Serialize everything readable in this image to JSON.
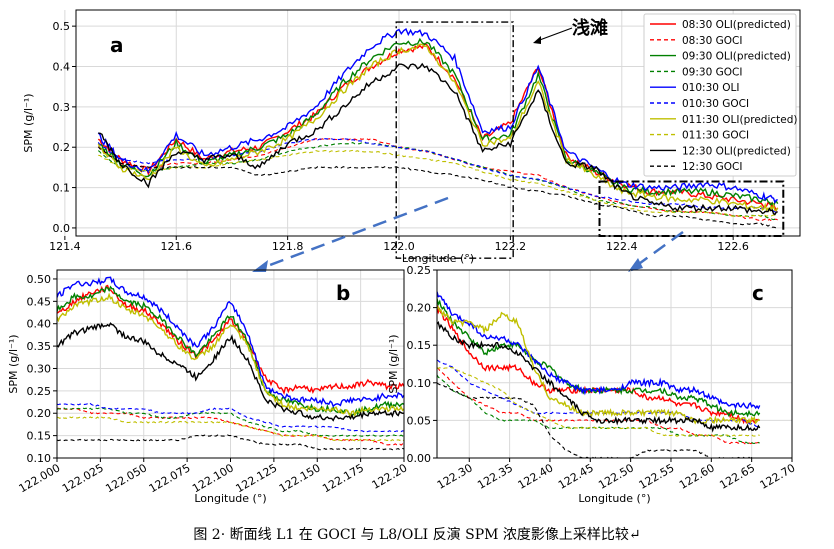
{
  "caption": "图 2· 断面线 L1 在 GOCI 与 L8/OLI 反演 SPM 浓度影像上采样比较↵",
  "legend": [
    {
      "label": "08:30 OLI(predicted)",
      "color": "#ff0000",
      "dash": false
    },
    {
      "label": "08:30 GOCI",
      "color": "#ff0000",
      "dash": true
    },
    {
      "label": "09:30 OLI(predicted)",
      "color": "#008000",
      "dash": false
    },
    {
      "label": "09:30 GOCI",
      "color": "#008000",
      "dash": true
    },
    {
      "label": "010:30 OLI",
      "color": "#0000ff",
      "dash": false
    },
    {
      "label": "010:30 GOCI",
      "color": "#0000ff",
      "dash": true
    },
    {
      "label": "011:30 OLI(predicted)",
      "color": "#bfbf00",
      "dash": false
    },
    {
      "label": "011:30 GOCI",
      "color": "#bfbf00",
      "dash": true
    },
    {
      "label": "12:30 OLI(predicted)",
      "color": "#000000",
      "dash": false
    },
    {
      "label": "12:30 GOCI",
      "color": "#000000",
      "dash": true
    }
  ],
  "chart_data": [
    {
      "panel_label": "a",
      "type": "line",
      "xlabel": "Longitude (°)",
      "ylabel": "SPM (g/l⁻¹)",
      "xlim": [
        121.42,
        122.72
      ],
      "ylim": [
        -0.02,
        0.54
      ],
      "xticks": [
        "121.4",
        "121.6",
        "121.8",
        "122.0",
        "122.2",
        "122.4",
        "122.6"
      ],
      "yticks": [
        "0.0",
        "0.1",
        "0.2",
        "0.3",
        "0.4",
        "0.5"
      ],
      "annotation": "浅滩",
      "x": [
        121.46,
        121.5,
        121.55,
        121.6,
        121.65,
        121.7,
        121.75,
        121.8,
        121.85,
        121.9,
        121.95,
        122.0,
        122.05,
        122.1,
        122.15,
        122.2,
        122.25,
        122.3,
        122.35,
        122.4,
        122.45,
        122.5,
        122.55,
        122.6,
        122.65,
        122.68
      ],
      "series": [
        {
          "name": "08:30 OLI(predicted)",
          "values": [
            0.22,
            0.17,
            0.14,
            0.22,
            0.17,
            0.19,
            0.2,
            0.24,
            0.28,
            0.35,
            0.4,
            0.44,
            0.45,
            0.37,
            0.22,
            0.26,
            0.4,
            0.18,
            0.14,
            0.11,
            0.09,
            0.09,
            0.08,
            0.07,
            0.06,
            0.05
          ]
        },
        {
          "name": "08:30 GOCI",
          "values": [
            0.2,
            0.16,
            0.15,
            0.16,
            0.16,
            0.17,
            0.18,
            0.2,
            0.22,
            0.22,
            0.22,
            0.2,
            0.19,
            0.17,
            0.15,
            0.14,
            0.13,
            0.1,
            0.08,
            0.06,
            0.05,
            0.04,
            0.04,
            0.03,
            0.02,
            0.02
          ]
        },
        {
          "name": "09:30 OLI(predicted)",
          "values": [
            0.21,
            0.16,
            0.13,
            0.21,
            0.16,
            0.18,
            0.2,
            0.23,
            0.28,
            0.36,
            0.42,
            0.46,
            0.46,
            0.38,
            0.22,
            0.23,
            0.38,
            0.17,
            0.14,
            0.1,
            0.09,
            0.09,
            0.09,
            0.08,
            0.07,
            0.06
          ]
        },
        {
          "name": "09:30 GOCI",
          "values": [
            0.19,
            0.15,
            0.14,
            0.15,
            0.16,
            0.16,
            0.17,
            0.19,
            0.2,
            0.21,
            0.21,
            0.2,
            0.19,
            0.17,
            0.15,
            0.13,
            0.12,
            0.1,
            0.07,
            0.06,
            0.05,
            0.04,
            0.04,
            0.03,
            0.03,
            0.02
          ]
        },
        {
          "name": "010:30 OLI",
          "values": [
            0.23,
            0.17,
            0.14,
            0.23,
            0.18,
            0.2,
            0.22,
            0.25,
            0.3,
            0.38,
            0.45,
            0.49,
            0.48,
            0.42,
            0.24,
            0.25,
            0.4,
            0.19,
            0.15,
            0.11,
            0.1,
            0.1,
            0.11,
            0.1,
            0.08,
            0.07
          ]
        },
        {
          "name": "010:30 GOCI",
          "values": [
            0.21,
            0.17,
            0.16,
            0.17,
            0.17,
            0.18,
            0.19,
            0.21,
            0.22,
            0.22,
            0.21,
            0.2,
            0.19,
            0.17,
            0.15,
            0.13,
            0.12,
            0.1,
            0.08,
            0.07,
            0.06,
            0.06,
            0.05,
            0.05,
            0.05,
            0.04
          ]
        },
        {
          "name": "011:30 OLI(predicted)",
          "values": [
            0.2,
            0.15,
            0.12,
            0.2,
            0.15,
            0.17,
            0.19,
            0.22,
            0.27,
            0.34,
            0.4,
            0.44,
            0.45,
            0.36,
            0.21,
            0.22,
            0.36,
            0.17,
            0.13,
            0.09,
            0.08,
            0.07,
            0.07,
            0.06,
            0.05,
            0.05
          ]
        },
        {
          "name": "011:30 GOCI",
          "values": [
            0.18,
            0.15,
            0.14,
            0.15,
            0.15,
            0.16,
            0.17,
            0.18,
            0.19,
            0.19,
            0.19,
            0.18,
            0.17,
            0.16,
            0.14,
            0.12,
            0.11,
            0.09,
            0.07,
            0.05,
            0.04,
            0.04,
            0.04,
            0.03,
            0.03,
            0.03
          ]
        },
        {
          "name": "12:30 OLI(predicted)",
          "values": [
            0.24,
            0.16,
            0.11,
            0.19,
            0.17,
            0.18,
            0.15,
            0.21,
            0.24,
            0.3,
            0.36,
            0.4,
            0.4,
            0.34,
            0.19,
            0.21,
            0.34,
            0.16,
            0.15,
            0.09,
            0.06,
            0.05,
            0.05,
            0.05,
            0.04,
            0.04
          ]
        },
        {
          "name": "12:30 GOCI",
          "values": [
            0.2,
            0.16,
            0.15,
            0.15,
            0.15,
            0.15,
            0.13,
            0.14,
            0.15,
            0.15,
            0.15,
            0.15,
            0.14,
            0.13,
            0.12,
            0.1,
            0.09,
            0.08,
            0.06,
            0.05,
            0.03,
            0.03,
            0.02,
            0.01,
            0.01,
            0.0
          ]
        }
      ]
    },
    {
      "panel_label": "b",
      "type": "line",
      "xlabel": "Longitude (°)",
      "ylabel": "SPM (g/l⁻¹)",
      "xlim": [
        122.0,
        122.2
      ],
      "ylim": [
        0.1,
        0.52
      ],
      "xticks": [
        "122.000",
        "122.025",
        "122.050",
        "122.075",
        "122.100",
        "122.125",
        "122.150",
        "122.175",
        "122.20"
      ],
      "yticks": [
        "0.10",
        "0.15",
        "0.20",
        "0.25",
        "0.30",
        "0.35",
        "0.40",
        "0.45",
        "0.50"
      ],
      "x": [
        122.0,
        122.01,
        122.02,
        122.03,
        122.04,
        122.05,
        122.06,
        122.07,
        122.08,
        122.09,
        122.1,
        122.11,
        122.12,
        122.13,
        122.14,
        122.15,
        122.16,
        122.17,
        122.18,
        122.19,
        122.2
      ],
      "series": [
        {
          "name": "08:30 OLI(predicted)",
          "values": [
            0.42,
            0.45,
            0.47,
            0.48,
            0.44,
            0.43,
            0.4,
            0.36,
            0.33,
            0.36,
            0.41,
            0.36,
            0.28,
            0.25,
            0.26,
            0.25,
            0.26,
            0.26,
            0.27,
            0.26,
            0.26
          ]
        },
        {
          "name": "08:30 GOCI",
          "values": [
            0.21,
            0.21,
            0.2,
            0.2,
            0.2,
            0.19,
            0.19,
            0.19,
            0.19,
            0.19,
            0.18,
            0.17,
            0.16,
            0.15,
            0.15,
            0.15,
            0.14,
            0.14,
            0.14,
            0.13,
            0.13
          ]
        },
        {
          "name": "09:30 OLI(predicted)",
          "values": [
            0.43,
            0.46,
            0.46,
            0.48,
            0.45,
            0.44,
            0.41,
            0.37,
            0.33,
            0.37,
            0.42,
            0.36,
            0.25,
            0.23,
            0.22,
            0.21,
            0.21,
            0.2,
            0.21,
            0.22,
            0.22
          ]
        },
        {
          "name": "09:30 GOCI",
          "values": [
            0.21,
            0.21,
            0.21,
            0.21,
            0.2,
            0.2,
            0.19,
            0.19,
            0.2,
            0.2,
            0.2,
            0.18,
            0.17,
            0.16,
            0.16,
            0.15,
            0.15,
            0.15,
            0.15,
            0.15,
            0.15
          ]
        },
        {
          "name": "010:30 OLI",
          "values": [
            0.46,
            0.49,
            0.49,
            0.5,
            0.47,
            0.46,
            0.43,
            0.39,
            0.35,
            0.39,
            0.45,
            0.38,
            0.26,
            0.24,
            0.23,
            0.23,
            0.22,
            0.23,
            0.23,
            0.24,
            0.24
          ]
        },
        {
          "name": "010:30 GOCI",
          "values": [
            0.22,
            0.22,
            0.22,
            0.21,
            0.21,
            0.21,
            0.2,
            0.2,
            0.2,
            0.21,
            0.21,
            0.19,
            0.18,
            0.17,
            0.17,
            0.17,
            0.17,
            0.16,
            0.16,
            0.16,
            0.16
          ]
        },
        {
          "name": "011:30 OLI(predicted)",
          "values": [
            0.41,
            0.44,
            0.45,
            0.46,
            0.43,
            0.42,
            0.39,
            0.35,
            0.32,
            0.35,
            0.4,
            0.35,
            0.25,
            0.22,
            0.21,
            0.21,
            0.21,
            0.2,
            0.21,
            0.21,
            0.21
          ]
        },
        {
          "name": "011:30 GOCI",
          "values": [
            0.19,
            0.19,
            0.19,
            0.19,
            0.18,
            0.18,
            0.18,
            0.18,
            0.18,
            0.18,
            0.18,
            0.17,
            0.16,
            0.15,
            0.15,
            0.15,
            0.14,
            0.14,
            0.14,
            0.14,
            0.14
          ]
        },
        {
          "name": "12:30 OLI(predicted)",
          "values": [
            0.35,
            0.38,
            0.39,
            0.4,
            0.37,
            0.36,
            0.33,
            0.31,
            0.28,
            0.32,
            0.37,
            0.32,
            0.23,
            0.21,
            0.2,
            0.19,
            0.19,
            0.19,
            0.2,
            0.2,
            0.2
          ]
        },
        {
          "name": "12:30 GOCI",
          "values": [
            0.14,
            0.14,
            0.14,
            0.14,
            0.14,
            0.14,
            0.14,
            0.14,
            0.15,
            0.15,
            0.15,
            0.14,
            0.13,
            0.13,
            0.13,
            0.12,
            0.12,
            0.12,
            0.12,
            0.12,
            0.12
          ]
        }
      ]
    },
    {
      "panel_label": "c",
      "type": "line",
      "xlabel": "Longitude (°)",
      "ylabel": "SPM (g/l⁻¹)",
      "xlim": [
        122.26,
        122.7
      ],
      "ylim": [
        0.0,
        0.25
      ],
      "xticks": [
        "122.30",
        "122.35",
        "122.40",
        "122.45",
        "122.50",
        "122.55",
        "122.60",
        "122.65",
        "122.70"
      ],
      "yticks": [
        "0.00",
        "0.05",
        "0.10",
        "0.15",
        "0.20",
        "0.25"
      ],
      "x": [
        122.26,
        122.28,
        122.3,
        122.32,
        122.34,
        122.36,
        122.38,
        122.4,
        122.42,
        122.44,
        122.46,
        122.48,
        122.5,
        122.52,
        122.54,
        122.56,
        122.58,
        122.6,
        122.62,
        122.64,
        122.66
      ],
      "series": [
        {
          "name": "08:30 OLI(predicted)",
          "values": [
            0.2,
            0.17,
            0.14,
            0.12,
            0.12,
            0.12,
            0.1,
            0.09,
            0.09,
            0.09,
            0.09,
            0.09,
            0.09,
            0.08,
            0.08,
            0.07,
            0.07,
            0.06,
            0.06,
            0.05,
            0.05
          ]
        },
        {
          "name": "08:30 GOCI",
          "values": [
            0.12,
            0.1,
            0.08,
            0.07,
            0.06,
            0.06,
            0.05,
            0.05,
            0.05,
            0.05,
            0.05,
            0.05,
            0.05,
            0.05,
            0.04,
            0.04,
            0.03,
            0.03,
            0.02,
            0.02,
            0.02
          ]
        },
        {
          "name": "09:30 OLI(predicted)",
          "values": [
            0.21,
            0.18,
            0.16,
            0.14,
            0.15,
            0.15,
            0.13,
            0.12,
            0.1,
            0.09,
            0.09,
            0.09,
            0.09,
            0.09,
            0.09,
            0.08,
            0.08,
            0.07,
            0.06,
            0.06,
            0.06
          ]
        },
        {
          "name": "09:30 GOCI",
          "values": [
            0.11,
            0.09,
            0.08,
            0.06,
            0.05,
            0.05,
            0.05,
            0.04,
            0.04,
            0.04,
            0.04,
            0.04,
            0.04,
            0.04,
            0.04,
            0.03,
            0.03,
            0.03,
            0.03,
            0.02,
            0.02
          ]
        },
        {
          "name": "010:30 OLI",
          "values": [
            0.22,
            0.19,
            0.18,
            0.16,
            0.16,
            0.15,
            0.13,
            0.11,
            0.1,
            0.09,
            0.09,
            0.09,
            0.1,
            0.1,
            0.1,
            0.09,
            0.09,
            0.08,
            0.07,
            0.07,
            0.07
          ]
        },
        {
          "name": "010:30 GOCI",
          "values": [
            0.13,
            0.12,
            0.1,
            0.09,
            0.08,
            0.07,
            0.06,
            0.06,
            0.06,
            0.06,
            0.06,
            0.06,
            0.06,
            0.06,
            0.06,
            0.06,
            0.05,
            0.05,
            0.05,
            0.05,
            0.04
          ]
        },
        {
          "name": "011:30 OLI(predicted)",
          "values": [
            0.2,
            0.18,
            0.18,
            0.17,
            0.19,
            0.18,
            0.12,
            0.08,
            0.07,
            0.06,
            0.06,
            0.06,
            0.06,
            0.06,
            0.06,
            0.06,
            0.05,
            0.05,
            0.05,
            0.05,
            0.05
          ]
        },
        {
          "name": "011:30 GOCI",
          "values": [
            0.12,
            0.12,
            0.11,
            0.1,
            0.09,
            0.07,
            0.06,
            0.05,
            0.04,
            0.04,
            0.04,
            0.04,
            0.04,
            0.04,
            0.03,
            0.03,
            0.03,
            0.03,
            0.03,
            0.03,
            0.03
          ]
        },
        {
          "name": "12:30 OLI(predicted)",
          "values": [
            0.18,
            0.16,
            0.15,
            0.15,
            0.15,
            0.14,
            0.12,
            0.1,
            0.08,
            0.06,
            0.05,
            0.05,
            0.05,
            0.05,
            0.05,
            0.05,
            0.05,
            0.04,
            0.04,
            0.04,
            0.04
          ]
        },
        {
          "name": "12:30 GOCI",
          "values": [
            0.1,
            0.09,
            0.08,
            0.08,
            0.08,
            0.08,
            0.07,
            0.03,
            0.01,
            0.0,
            0.0,
            0.0,
            0.0,
            0.01,
            0.01,
            0.01,
            0.01,
            0.0,
            0.0,
            0.0,
            0.0
          ]
        }
      ]
    }
  ]
}
